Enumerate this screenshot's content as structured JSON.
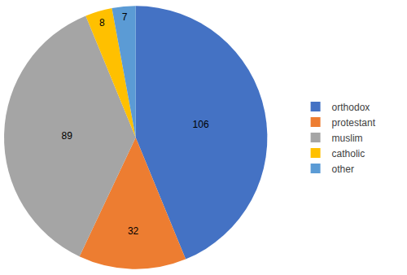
{
  "chart_data": {
    "type": "pie",
    "categories": [
      "orthodox",
      "protestant",
      "muslim",
      "catholic",
      "other"
    ],
    "values": [
      106,
      32,
      89,
      8,
      7
    ],
    "colors": [
      "#4472c4",
      "#ed7d31",
      "#a5a5a5",
      "#ffc000",
      "#5b9bd5"
    ],
    "data_labels": true,
    "legend": "right"
  }
}
